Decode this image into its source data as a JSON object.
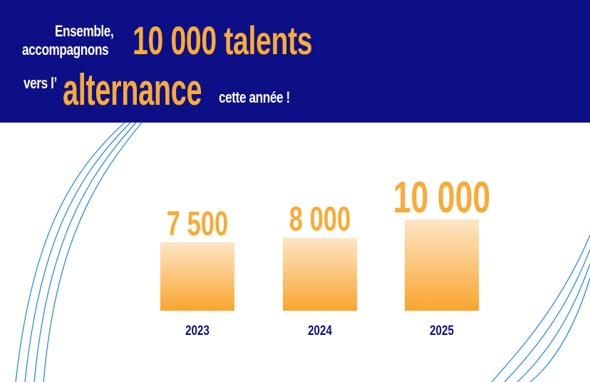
{
  "headline": {
    "line1_small": "Ensemble,",
    "line2_small": "accompagnons",
    "line12_big": "10 000 talents",
    "line3_small": "vers l’",
    "line3_big": "alternance",
    "line3_end": "cette année !"
  },
  "colors": {
    "banner": "#0d0f86",
    "accent": "#f9ab36",
    "bar_top": "#fde6c6",
    "bar_bottom": "#f9a52e",
    "category_text": "#0d0f86",
    "curve_lines": "#2a8be6"
  },
  "chart_data": {
    "type": "bar",
    "categories": [
      "2023",
      "2024",
      "2025"
    ],
    "values": [
      7500,
      8000,
      10000
    ],
    "value_labels": [
      "7 500",
      "8 000",
      "10 000"
    ],
    "title": "",
    "xlabel": "",
    "ylabel": "",
    "ylim": [
      0,
      10000
    ],
    "grid": false
  }
}
